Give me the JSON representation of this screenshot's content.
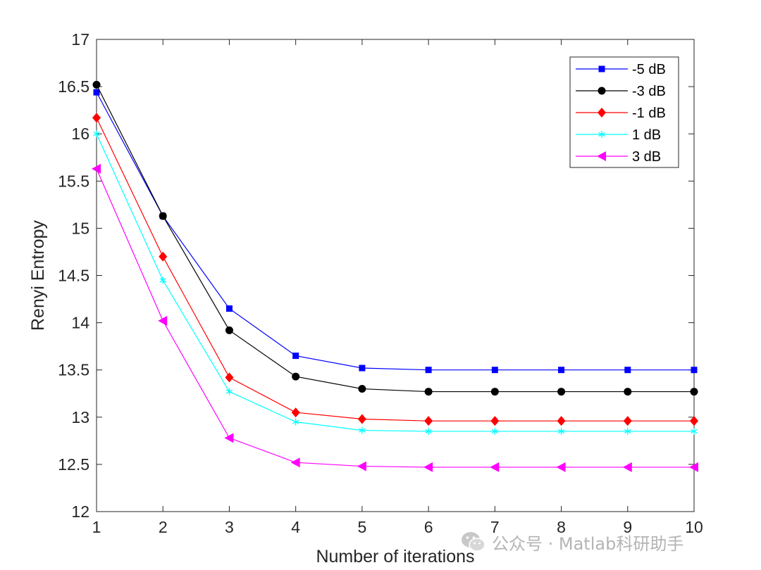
{
  "chart_data": {
    "type": "line",
    "title": "",
    "xlabel": "Number of iterations",
    "ylabel": "Renyi Entropy",
    "xlim": [
      1,
      10
    ],
    "ylim": [
      12,
      17
    ],
    "x": [
      1,
      2,
      3,
      4,
      5,
      6,
      7,
      8,
      9,
      10
    ],
    "xticks": [
      "1",
      "2",
      "3",
      "4",
      "5",
      "6",
      "7",
      "8",
      "9",
      "10"
    ],
    "yticks": [
      "12",
      "12.5",
      "13",
      "13.5",
      "14",
      "14.5",
      "15",
      "15.5",
      "16",
      "16.5",
      "17"
    ],
    "grid": false,
    "legend_position": "top-right",
    "series": [
      {
        "name": "-5 dB",
        "color": "#0000ff",
        "marker": "square",
        "values": [
          16.44,
          15.13,
          14.15,
          13.65,
          13.52,
          13.5,
          13.5,
          13.5,
          13.5,
          13.5
        ]
      },
      {
        "name": "-3 dB",
        "color": "#000000",
        "marker": "circle",
        "values": [
          16.52,
          15.13,
          13.92,
          13.43,
          13.3,
          13.27,
          13.27,
          13.27,
          13.27,
          13.27
        ]
      },
      {
        "name": "-1 dB",
        "color": "#ff0000",
        "marker": "diamond",
        "values": [
          16.17,
          14.7,
          13.42,
          13.05,
          12.98,
          12.96,
          12.96,
          12.96,
          12.96,
          12.96
        ]
      },
      {
        "name": "1 dB",
        "color": "#00ffff",
        "marker": "asterisk",
        "values": [
          16.0,
          14.45,
          13.27,
          12.95,
          12.86,
          12.85,
          12.85,
          12.85,
          12.85,
          12.85
        ]
      },
      {
        "name": "3 dB",
        "color": "#ff00ff",
        "marker": "triangle-left",
        "values": [
          15.63,
          14.02,
          12.78,
          12.52,
          12.48,
          12.47,
          12.47,
          12.47,
          12.47,
          12.47
        ]
      }
    ]
  },
  "watermark": {
    "text": "公众号 · Matlab科研助手",
    "icon": "wechat-icon"
  }
}
